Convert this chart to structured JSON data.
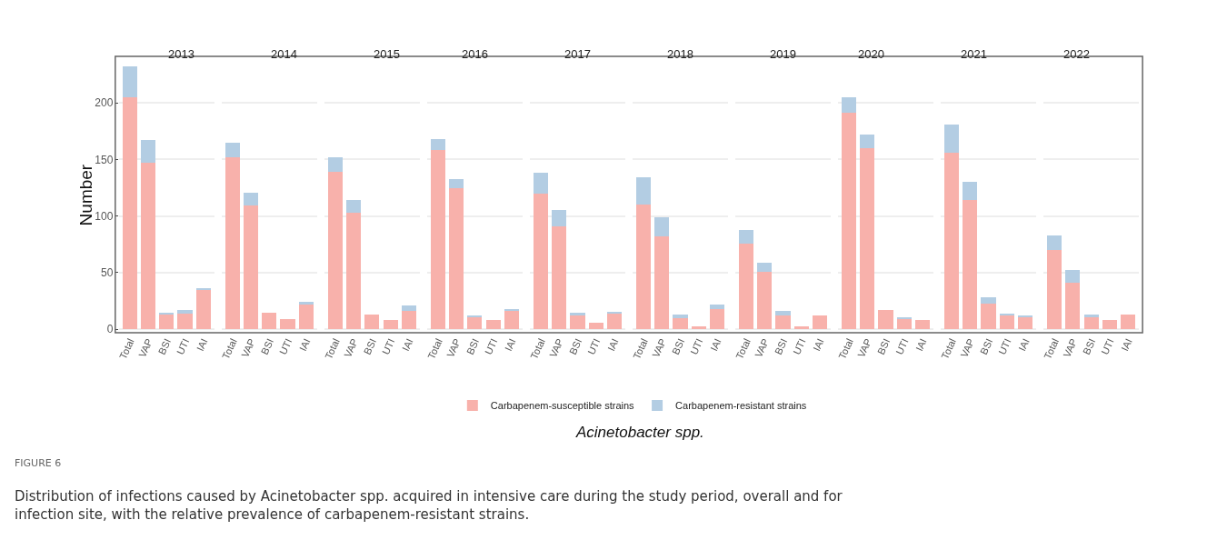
{
  "chart_data": [
    {
      "type": "bar",
      "title": "2013",
      "ylabel": "Number",
      "categories": [
        "Total",
        "VAP",
        "BSI",
        "UTI",
        "IAI"
      ],
      "stacked": true,
      "ylim": [
        -3,
        241
      ],
      "yticks": [
        0,
        50,
        100,
        150,
        200
      ],
      "grid": "y",
      "legend": "bottom",
      "annotations": [
        "FIGURE 6",
        "Distribution of infections caused by Acinetobacter spp. acquired in intensive care during the study period, overall and for infection site, with the relative prevalence of carbapenem-resistant strains."
      ],
      "series": [
        {
          "name": "Carbapenem-susceptible strains",
          "color": "#f8b1ab",
          "values": [
            205,
            147,
            13,
            14,
            35
          ]
        },
        {
          "name": "Carbapenem-resistant strains",
          "color": "#b3cde3",
          "values": [
            27,
            20,
            2,
            3,
            1
          ]
        }
      ]
    },
    {
      "type": "bar",
      "title": "2014",
      "categories": [
        "Total",
        "VAP",
        "BSI",
        "UTI",
        "IAI"
      ],
      "stacked": true,
      "ylim": [
        -3,
        241
      ],
      "yticks": [
        0,
        50,
        100,
        150,
        200
      ],
      "grid": "y",
      "tick_labels": "x",
      "series": [
        {
          "color": "#f8b1ab",
          "values": [
            152,
            109,
            15,
            9,
            22
          ]
        },
        {
          "color": "#b3cde3",
          "values": [
            13,
            12,
            0,
            0,
            2
          ]
        }
      ]
    },
    {
      "type": "bar",
      "title": "2015",
      "categories": [
        "Total",
        "VAP",
        "BSI",
        "UTI",
        "IAI"
      ],
      "stacked": true,
      "ylim": [
        -3,
        241
      ],
      "yticks": [
        0,
        50,
        100,
        150,
        200
      ],
      "grid": "y",
      "tick_labels": "x",
      "series": [
        {
          "color": "#f8b1ab",
          "values": [
            139,
            103,
            13,
            8,
            16
          ]
        },
        {
          "color": "#b3cde3",
          "values": [
            13,
            11,
            0,
            0,
            5
          ]
        }
      ]
    },
    {
      "type": "bar",
      "title": "2016",
      "categories": [
        "Total",
        "VAP",
        "BSI",
        "UTI",
        "IAI"
      ],
      "stacked": true,
      "ylim": [
        -3,
        241
      ],
      "yticks": [
        0,
        50,
        100,
        150,
        200
      ],
      "grid": "y",
      "tick_labels": "x",
      "series": [
        {
          "color": "#f8b1ab",
          "values": [
            158,
            125,
            11,
            8,
            17
          ]
        },
        {
          "color": "#b3cde3",
          "values": [
            10,
            8,
            1,
            0,
            1
          ]
        }
      ]
    },
    {
      "type": "bar",
      "title": "2017",
      "categories": [
        "Total",
        "VAP",
        "BSI",
        "UTI",
        "IAI"
      ],
      "stacked": true,
      "ylim": [
        -3,
        241
      ],
      "yticks": [
        0,
        50,
        100,
        150,
        200
      ],
      "grid": "y",
      "tick_labels": "x",
      "series": [
        {
          "color": "#f8b1ab",
          "values": [
            120,
            91,
            12,
            6,
            14
          ]
        },
        {
          "color": "#b3cde3",
          "values": [
            18,
            14,
            3,
            0,
            1
          ]
        }
      ]
    },
    {
      "type": "bar",
      "title": "2018",
      "xlabel": "Acinetobacter spp.",
      "categories": [
        "Total",
        "VAP",
        "BSI",
        "UTI",
        "IAI"
      ],
      "stacked": true,
      "ylim": [
        -3,
        241
      ],
      "yticks": [
        0,
        50,
        100,
        150,
        200
      ],
      "grid": "y",
      "tick_labels": "x",
      "series": [
        {
          "color": "#f8b1ab",
          "values": [
            110,
            82,
            10,
            3,
            18
          ]
        },
        {
          "color": "#b3cde3",
          "values": [
            24,
            17,
            3,
            0,
            4
          ]
        }
      ]
    },
    {
      "type": "bar",
      "title": "2019",
      "categories": [
        "Total",
        "VAP",
        "BSI",
        "UTI",
        "IAI"
      ],
      "stacked": true,
      "ylim": [
        -3,
        241
      ],
      "yticks": [
        0,
        50,
        100,
        150,
        200
      ],
      "grid": "y",
      "tick_labels": "x",
      "series": [
        {
          "color": "#f8b1ab",
          "values": [
            76,
            51,
            12,
            3,
            12
          ]
        },
        {
          "color": "#b3cde3",
          "values": [
            12,
            8,
            4,
            0,
            0
          ]
        }
      ]
    },
    {
      "type": "bar",
      "title": "2020",
      "categories": [
        "Total",
        "VAP",
        "BSI",
        "UTI",
        "IAI"
      ],
      "stacked": true,
      "ylim": [
        -3,
        241
      ],
      "yticks": [
        0,
        50,
        100,
        150,
        200
      ],
      "grid": "y",
      "tick_labels": "x",
      "series": [
        {
          "color": "#f8b1ab",
          "values": [
            191,
            160,
            17,
            9,
            8
          ]
        },
        {
          "color": "#b3cde3",
          "values": [
            14,
            12,
            0,
            2,
            0
          ]
        }
      ]
    },
    {
      "type": "bar",
      "title": "2021",
      "categories": [
        "Total",
        "VAP",
        "BSI",
        "UTI",
        "IAI"
      ],
      "stacked": true,
      "ylim": [
        -3,
        241
      ],
      "yticks": [
        0,
        50,
        100,
        150,
        200
      ],
      "grid": "y",
      "tick_labels": "x",
      "series": [
        {
          "color": "#f8b1ab",
          "values": [
            156,
            114,
            23,
            12,
            11
          ]
        },
        {
          "color": "#b3cde3",
          "values": [
            25,
            16,
            5,
            2,
            1
          ]
        }
      ]
    },
    {
      "type": "bar",
      "title": "2022",
      "categories": [
        "Total",
        "VAP",
        "BSI",
        "UTI",
        "IAI"
      ],
      "stacked": true,
      "ylim": [
        -3,
        241
      ],
      "yticks": [
        0,
        50,
        100,
        150,
        200
      ],
      "grid": "y",
      "tick_labels": "x",
      "series": [
        {
          "color": "#f8b1ab",
          "values": [
            70,
            41,
            11,
            8,
            13
          ]
        },
        {
          "color": "#b3cde3",
          "values": [
            13,
            11,
            2,
            0,
            0
          ]
        }
      ]
    }
  ]
}
